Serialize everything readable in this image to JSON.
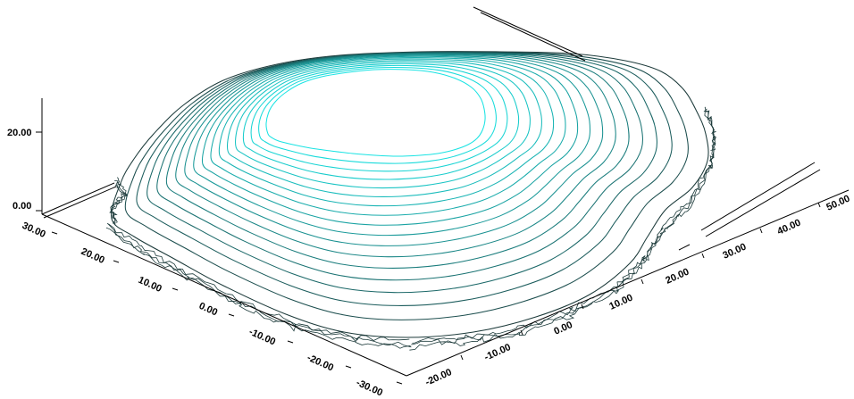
{
  "chart_data": {
    "type": "contour-3d",
    "title": "",
    "xlabel": "",
    "ylabel": "",
    "zlabel": "",
    "x_ticks": [
      "-20.00",
      "-10.00",
      "0.00",
      "10.00",
      "20.00",
      "30.00",
      "40.00",
      "50.00"
    ],
    "y_ticks": [
      "30.00",
      "20.00",
      "10.00",
      "0.00",
      "-10.00",
      "-20.00",
      "-30.00"
    ],
    "z_ticks": [
      "0.00",
      "20.00"
    ],
    "xlim": [
      -25,
      52
    ],
    "ylim": [
      -32,
      32
    ],
    "zlim": [
      0,
      28
    ],
    "grid": false,
    "contour_levels": 18,
    "surface_peak_z": 28,
    "colors": {
      "low": "#1c3a3a",
      "high": "#19e3e3",
      "axis": "#000000"
    }
  }
}
